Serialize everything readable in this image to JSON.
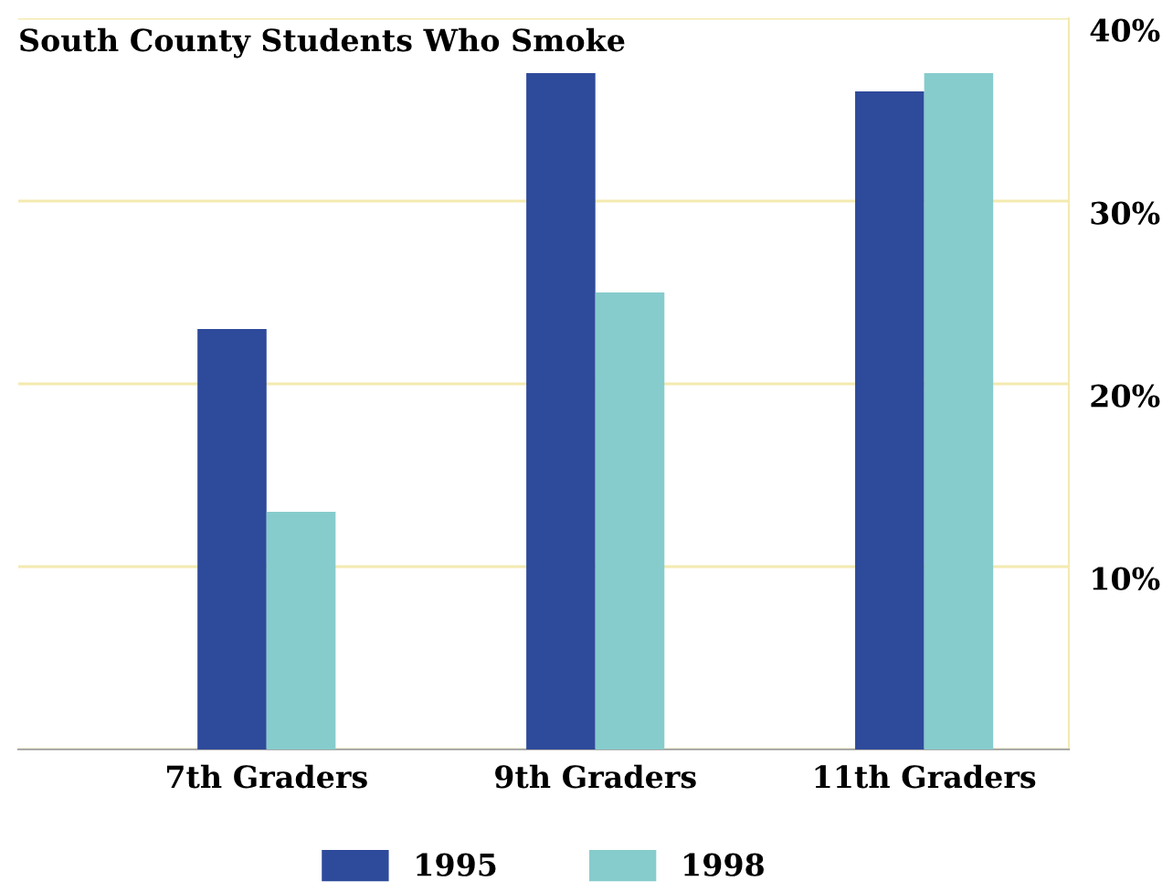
{
  "chart_data": {
    "type": "bar",
    "title": "South County Students Who Smoke",
    "categories": [
      "7th Graders",
      "9th Graders",
      "11th Graders"
    ],
    "series": [
      {
        "name": "1995",
        "color": "#2e4a9a",
        "values": [
          23,
          37,
          36
        ]
      },
      {
        "name": "1998",
        "color": "#86cccd",
        "values": [
          13,
          25,
          37
        ]
      }
    ],
    "ylim": [
      0,
      40
    ],
    "yticks": [
      {
        "value": 0,
        "label": null
      },
      {
        "value": 10,
        "label": "10%"
      },
      {
        "value": 20,
        "label": "20%"
      },
      {
        "value": 30,
        "label": "30%"
      },
      {
        "value": 40,
        "label": "40%"
      }
    ],
    "grid": "y",
    "legend": "bottom"
  }
}
